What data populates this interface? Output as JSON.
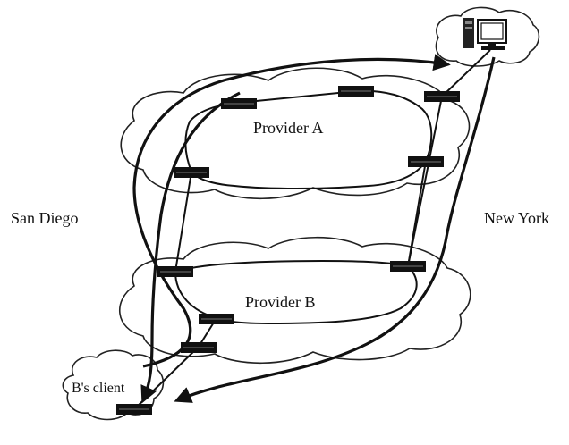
{
  "labels": {
    "san_diego": "San Diego",
    "new_york": "New York",
    "provider_a": "Provider A",
    "provider_b": "Provider B",
    "client": "B's client"
  },
  "icons": {
    "server": "computer-icon",
    "router": "router-icon"
  },
  "colors": {
    "line": "#111111",
    "cloud_fill": "#ffffff",
    "router_fill": "#111111"
  }
}
